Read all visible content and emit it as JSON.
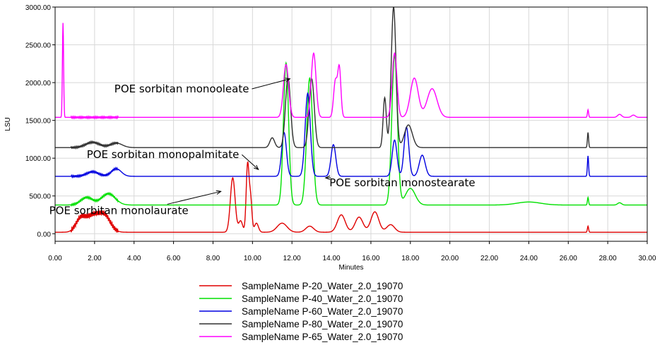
{
  "chart_data": {
    "type": "line",
    "title": "",
    "xlabel": "Minutes",
    "ylabel": "LSU",
    "xlim": [
      0,
      30
    ],
    "ylim": [
      -100,
      3000
    ],
    "x_ticks": [
      "0.00",
      "2.00",
      "4.00",
      "6.00",
      "8.00",
      "10.00",
      "12.00",
      "14.00",
      "16.00",
      "18.00",
      "20.00",
      "22.00",
      "24.00",
      "26.00",
      "28.00",
      "30.00"
    ],
    "x_tick_values": [
      0,
      2,
      4,
      6,
      8,
      10,
      12,
      14,
      16,
      18,
      20,
      22,
      24,
      26,
      28,
      30
    ],
    "y_ticks": [
      "0.00",
      "500.00",
      "1000.00",
      "1500.00",
      "2000.00",
      "2500.00",
      "3000.00"
    ],
    "y_tick_values": [
      0,
      500,
      1000,
      1500,
      2000,
      2500,
      3000
    ],
    "grid": true,
    "legend_position": "bottom",
    "series": [
      {
        "name": "SampleName P-20_Water_2.0_19070",
        "color": "#e00000",
        "baseline": 20,
        "peaks": [
          [
            1.3,
            180,
            0.25
          ],
          [
            1.9,
            200,
            0.3
          ],
          [
            2.5,
            220,
            0.3
          ],
          [
            9.0,
            720,
            0.12
          ],
          [
            9.4,
            150,
            0.1
          ],
          [
            9.75,
            880,
            0.07
          ],
          [
            9.9,
            450,
            0.07
          ],
          [
            10.2,
            120,
            0.1
          ],
          [
            11.5,
            120,
            0.25
          ],
          [
            12.9,
            80,
            0.2
          ],
          [
            14.5,
            230,
            0.2
          ],
          [
            15.4,
            200,
            0.2
          ],
          [
            16.2,
            270,
            0.2
          ],
          [
            17.0,
            100,
            0.2
          ],
          [
            27.0,
            80,
            0.03
          ]
        ]
      },
      {
        "name": "SampleName P-40_Water_2.0_19070",
        "color": "#00e000",
        "baseline": 380,
        "peaks": [
          [
            1.6,
            100,
            0.3
          ],
          [
            2.7,
            150,
            0.35
          ],
          [
            11.7,
            1880,
            0.13
          ],
          [
            12.9,
            1680,
            0.15
          ],
          [
            17.2,
            1980,
            0.14
          ],
          [
            18.0,
            220,
            0.25
          ],
          [
            24.0,
            40,
            0.6
          ],
          [
            27.0,
            100,
            0.03
          ],
          [
            28.6,
            30,
            0.1
          ]
        ]
      },
      {
        "name": "SampleName P-60_Water_2.0_19070",
        "color": "#0000e0",
        "baseline": 760,
        "peaks": [
          [
            1.9,
            60,
            0.3
          ],
          [
            3.1,
            100,
            0.25
          ],
          [
            11.6,
            580,
            0.12
          ],
          [
            12.8,
            1100,
            0.13
          ],
          [
            14.1,
            420,
            0.12
          ],
          [
            17.2,
            480,
            0.12
          ],
          [
            17.8,
            650,
            0.12
          ],
          [
            18.6,
            280,
            0.15
          ],
          [
            27.0,
            270,
            0.03
          ]
        ]
      },
      {
        "name": "SampleName P-80_Water_2.0_19070",
        "color": "#303030",
        "baseline": 1140,
        "peaks": [
          [
            1.9,
            70,
            0.35
          ],
          [
            3.1,
            60,
            0.3
          ],
          [
            11.0,
            130,
            0.12
          ],
          [
            11.8,
            920,
            0.13
          ],
          [
            13.0,
            910,
            0.13
          ],
          [
            16.7,
            660,
            0.08
          ],
          [
            17.15,
            1860,
            0.12
          ],
          [
            17.9,
            300,
            0.2
          ],
          [
            27.0,
            200,
            0.03
          ]
        ]
      },
      {
        "name": "SampleName P-65_Water_2.0_19070",
        "color": "#ff00ff",
        "baseline": 1540,
        "peaks": [
          [
            0.4,
            1250,
            0.03
          ],
          [
            11.7,
            700,
            0.13
          ],
          [
            13.1,
            850,
            0.12
          ],
          [
            14.2,
            480,
            0.09
          ],
          [
            14.4,
            650,
            0.08
          ],
          [
            17.2,
            850,
            0.12
          ],
          [
            18.2,
            520,
            0.2
          ],
          [
            19.1,
            380,
            0.25
          ],
          [
            27.0,
            100,
            0.03
          ],
          [
            28.6,
            40,
            0.1
          ],
          [
            29.3,
            30,
            0.1
          ]
        ]
      }
    ],
    "annotations": [
      {
        "text": "POE sorbitan monooleate",
        "x": 3.0,
        "y": 1870,
        "arrow_to": [
          11.9,
          2050
        ]
      },
      {
        "text": "POE sorbitan monopalmitate",
        "x": 1.6,
        "y": 1000,
        "arrow_to": [
          10.3,
          850
        ]
      },
      {
        "text": "POE sorbitan monostearate",
        "x": 13.9,
        "y": 630,
        "arrow_to": [
          13.7,
          740
        ]
      },
      {
        "text": "POE sorbitan monolaurate",
        "x": -0.3,
        "y": 260,
        "arrow_to": [
          8.4,
          560
        ]
      }
    ]
  }
}
